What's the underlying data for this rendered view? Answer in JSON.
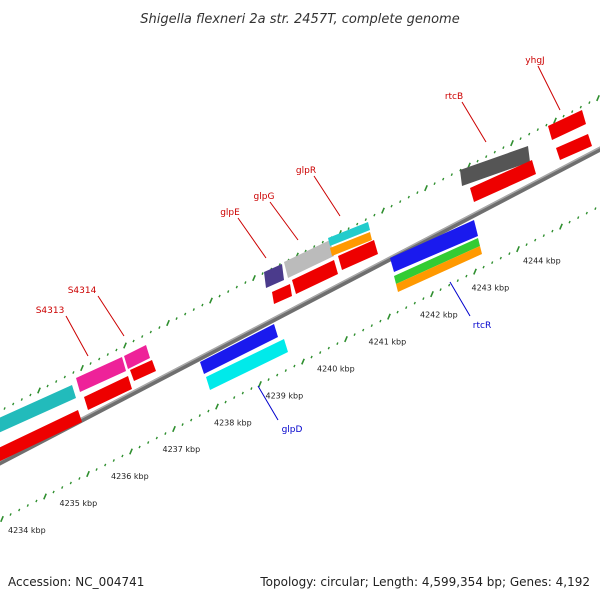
{
  "title": "Shigella flexneri 2a str. 2457T, complete genome",
  "footer": {
    "accession": "Accession: NC_004741",
    "summary": "Topology: circular; Length: 4,599,354 bp; Genes: 4,192"
  },
  "scale_unit": "kbp",
  "ruler_ticks": [
    {
      "value": 4234,
      "label": "4234 kbp"
    },
    {
      "value": 4235,
      "label": "4235 kbp"
    },
    {
      "value": 4236,
      "label": "4236 kbp"
    },
    {
      "value": 4237,
      "label": "4237 kbp"
    },
    {
      "value": 4238,
      "label": "4238 kbp"
    },
    {
      "value": 4239,
      "label": "4239 kbp"
    },
    {
      "value": 4240,
      "label": "4240 kbp"
    },
    {
      "value": 4241,
      "label": "4241 kbp"
    },
    {
      "value": 4242,
      "label": "4242 kbp"
    },
    {
      "value": 4243,
      "label": "4243 kbp"
    },
    {
      "value": 4244,
      "label": "4244 kbp"
    }
  ],
  "colors": {
    "genome_line": "#8a8a8a",
    "tick_green": "#2f8f2f",
    "forward_label": "#cc0000",
    "reverse_label": "#0000cc",
    "cds_red": "#ff0000",
    "teal": "#33cccc",
    "magenta": "#ff33aa",
    "blue": "#1a1aee",
    "cyan": "#00ffff",
    "grey_dark": "#555555",
    "grey_light": "#bbbbbb",
    "navy": "#4b3b8c",
    "green": "#33cc33",
    "orange": "#ff9900"
  },
  "labels": [
    {
      "name": "S4313",
      "strand": "forward"
    },
    {
      "name": "S4314",
      "strand": "forward"
    },
    {
      "name": "glpE",
      "strand": "forward"
    },
    {
      "name": "glpG",
      "strand": "forward"
    },
    {
      "name": "glpR",
      "strand": "forward"
    },
    {
      "name": "rtcB",
      "strand": "forward"
    },
    {
      "name": "yhgJ",
      "strand": "forward"
    },
    {
      "name": "glpD",
      "strand": "reverse"
    },
    {
      "name": "rtcR",
      "strand": "reverse"
    }
  ]
}
